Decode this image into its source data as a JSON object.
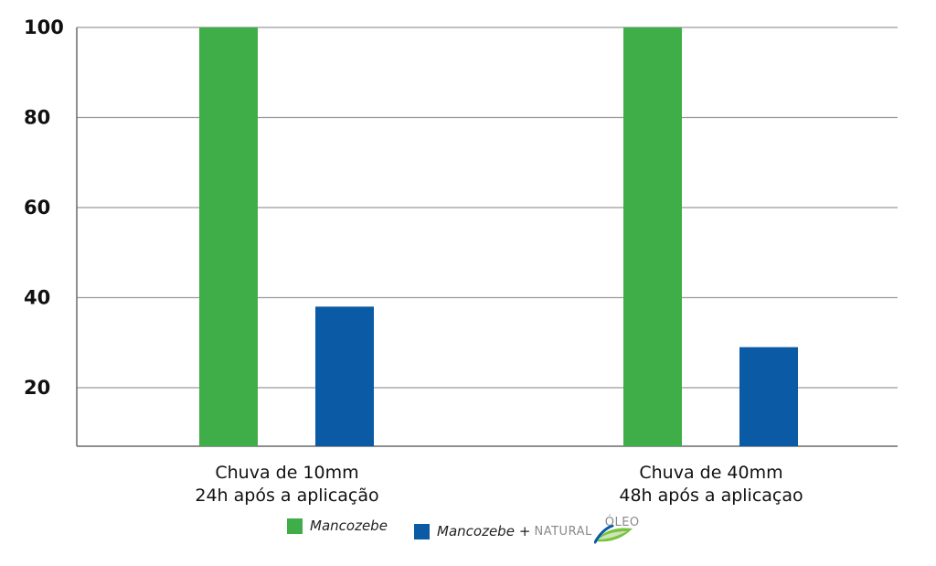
{
  "chart_data": {
    "type": "bar",
    "categories": [
      [
        "Chuva de 10mm",
        "24h após a aplicação"
      ],
      [
        "Chuva de 40mm",
        "48h após a aplicaçao"
      ]
    ],
    "series": [
      {
        "name": "Mancozebe",
        "color": "#3fae49",
        "values": [
          100,
          100
        ]
      },
      {
        "name": "Mancozebe + NATURAL ÓLEO",
        "color": "#0b5aa5",
        "values": [
          38,
          29
        ]
      }
    ],
    "yticks": [
      20,
      40,
      60,
      80,
      100
    ],
    "ylim": [
      7,
      100
    ],
    "grid": true,
    "legend_position": "bottom-center"
  },
  "legend": {
    "item1": "Mancozebe",
    "item2_text": "Mancozebe",
    "item2_plus": "+",
    "brand_part1": "NATURAL",
    "brand_part2": "ÓLEO",
    "brand_icon": "leaf-drop-icon"
  }
}
